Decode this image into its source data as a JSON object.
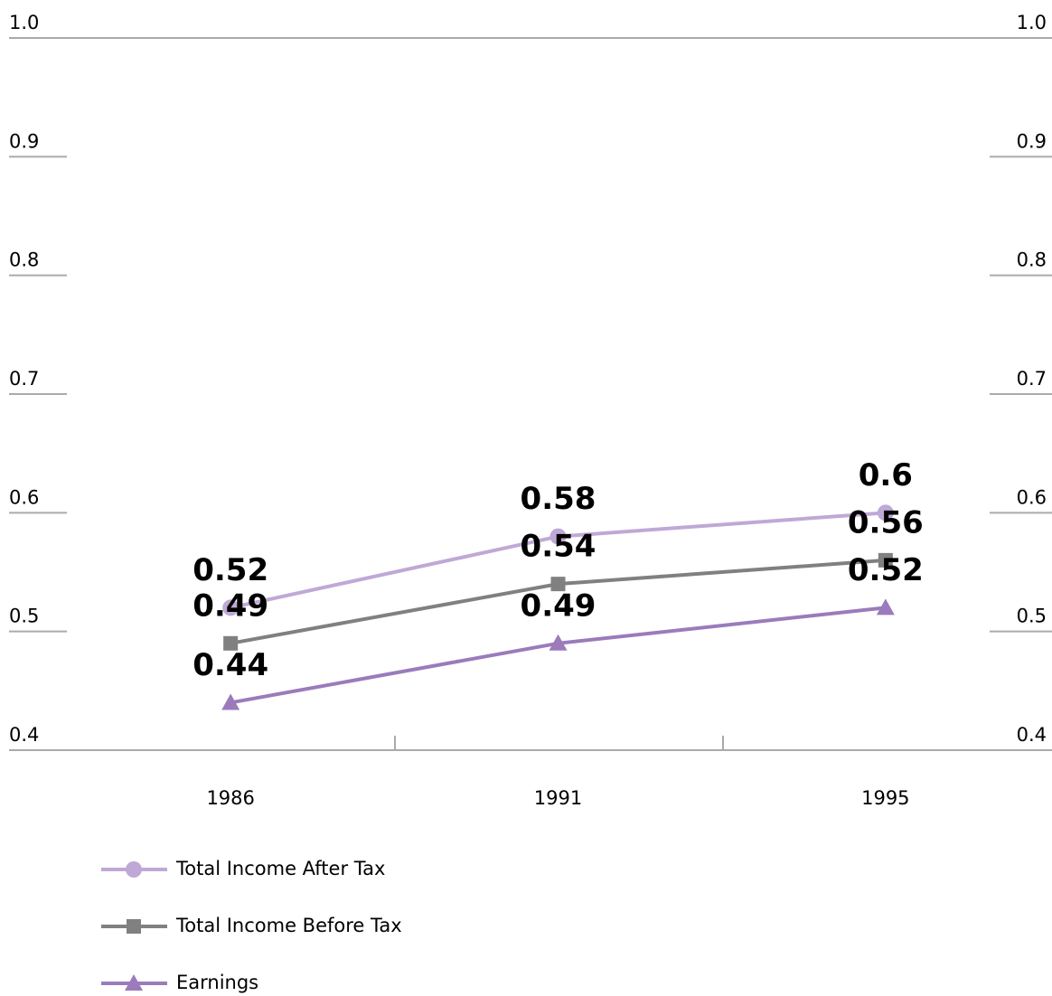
{
  "chart_data": {
    "type": "line",
    "categories": [
      "1986",
      "1991",
      "1995"
    ],
    "series": [
      {
        "name": "Total Income After Tax",
        "color": "#c0a8d6",
        "marker": "circle",
        "values": [
          0.52,
          0.58,
          0.6
        ]
      },
      {
        "name": "Total Income Before Tax",
        "color": "#808080",
        "marker": "square",
        "values": [
          0.49,
          0.54,
          0.56
        ]
      },
      {
        "name": "Earnings",
        "color": "#9b7bbb",
        "marker": "triangle",
        "values": [
          0.44,
          0.49,
          0.52
        ]
      }
    ],
    "ylim": [
      0.4,
      1.0
    ],
    "yticks": [
      0.4,
      0.5,
      0.6,
      0.7,
      0.8,
      0.9,
      {
        "value": 1.0,
        "label": "1.0"
      }
    ],
    "y2lim": [
      0.4,
      1.0
    ],
    "y2ticks": [
      0.4,
      0.5,
      0.6,
      0.7,
      0.8,
      0.9,
      {
        "value": 1.0,
        "label": "1.0"
      }
    ],
    "legend": "bottom-left"
  }
}
